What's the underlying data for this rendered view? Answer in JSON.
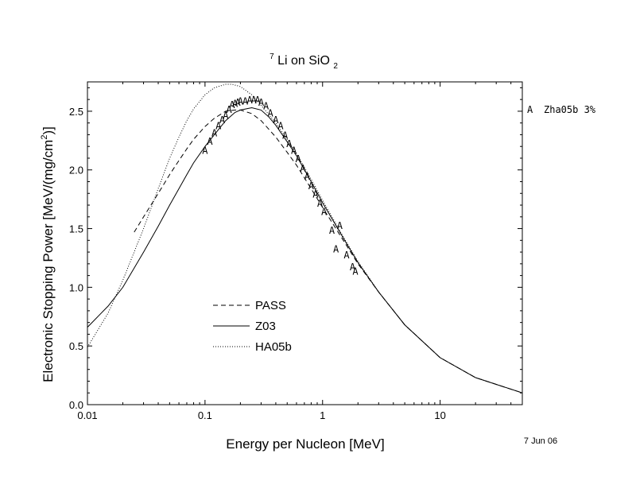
{
  "chart_data": {
    "type": "line",
    "title": {
      "isotope": "7",
      "text_before_sub": "Li on SiO",
      "subscript": "2"
    },
    "xlabel": "Energy per Nucleon [MeV]",
    "ylabel": {
      "prefix": "Electronic Stopping Power [MeV/(mg/cm",
      "superscript": "2",
      "suffix": ")]"
    },
    "x_scale": "log",
    "xlim": [
      0.01,
      50
    ],
    "ylim": [
      0.0,
      2.75
    ],
    "x_ticks": [
      {
        "value": 0.01,
        "label": "0.01"
      },
      {
        "value": 0.1,
        "label": "0.1"
      },
      {
        "value": 1,
        "label": "1"
      },
      {
        "value": 10,
        "label": "10"
      }
    ],
    "y_ticks": [
      {
        "value": 0.0,
        "label": "0.0"
      },
      {
        "value": 0.5,
        "label": "0.5"
      },
      {
        "value": 1.0,
        "label": "1.0"
      },
      {
        "value": 1.5,
        "label": "1.5"
      },
      {
        "value": 2.0,
        "label": "2.0"
      },
      {
        "value": 2.5,
        "label": "2.5"
      }
    ],
    "grid": false,
    "legend_position": "lower-center",
    "series": [
      {
        "name": "PASS",
        "style": "dashed",
        "x": [
          0.025,
          0.03,
          0.04,
          0.05,
          0.06,
          0.07,
          0.08,
          0.1,
          0.12,
          0.15,
          0.18,
          0.2,
          0.25,
          0.3,
          0.4,
          0.5,
          0.6,
          0.8,
          1.0,
          1.5,
          2.0,
          3.0,
          5.0,
          10,
          20,
          50
        ],
        "y": [
          1.47,
          1.6,
          1.8,
          1.96,
          2.08,
          2.18,
          2.26,
          2.37,
          2.44,
          2.5,
          2.51,
          2.51,
          2.48,
          2.42,
          2.28,
          2.15,
          2.04,
          1.84,
          1.68,
          1.4,
          1.2,
          0.96,
          0.68,
          0.4,
          0.23,
          0.1
        ]
      },
      {
        "name": "Z03",
        "style": "solid",
        "x": [
          0.01,
          0.015,
          0.02,
          0.03,
          0.04,
          0.05,
          0.06,
          0.07,
          0.08,
          0.1,
          0.12,
          0.15,
          0.18,
          0.2,
          0.25,
          0.3,
          0.35,
          0.4,
          0.5,
          0.6,
          0.8,
          1.0,
          1.5,
          2.0,
          3.0,
          5.0,
          10,
          20,
          50
        ],
        "y": [
          0.66,
          0.84,
          1.0,
          1.3,
          1.52,
          1.7,
          1.84,
          1.96,
          2.06,
          2.2,
          2.3,
          2.42,
          2.49,
          2.51,
          2.53,
          2.51,
          2.45,
          2.38,
          2.24,
          2.12,
          1.9,
          1.72,
          1.42,
          1.21,
          0.96,
          0.68,
          0.4,
          0.23,
          0.1
        ]
      },
      {
        "name": "HA05b",
        "style": "dotted",
        "x": [
          0.01,
          0.015,
          0.02,
          0.03,
          0.04,
          0.05,
          0.06,
          0.07,
          0.08,
          0.1,
          0.12,
          0.15,
          0.17,
          0.2,
          0.25,
          0.3,
          0.35,
          0.4,
          0.5,
          0.6,
          0.8,
          1.0,
          1.5,
          2.0,
          3.0,
          5.0,
          10,
          20,
          50
        ],
        "y": [
          0.49,
          0.78,
          1.06,
          1.5,
          1.84,
          2.1,
          2.28,
          2.42,
          2.52,
          2.64,
          2.7,
          2.73,
          2.73,
          2.71,
          2.64,
          2.55,
          2.47,
          2.4,
          2.26,
          2.14,
          1.92,
          1.74,
          1.43,
          1.22,
          0.96,
          0.68,
          0.4,
          0.23,
          0.1
        ]
      }
    ],
    "experimental": {
      "marker": "A",
      "legend_label": "Zha05b 3%",
      "legend_position": "right",
      "x": [
        0.1,
        0.11,
        0.12,
        0.13,
        0.14,
        0.15,
        0.16,
        0.17,
        0.18,
        0.19,
        0.2,
        0.22,
        0.24,
        0.26,
        0.28,
        0.3,
        0.33,
        0.36,
        0.4,
        0.44,
        0.48,
        0.52,
        0.57,
        0.62,
        0.68,
        0.74,
        0.8,
        0.87,
        0.95,
        1.03,
        1.2,
        1.3,
        1.4,
        1.6,
        1.8,
        1.9
      ],
      "y": [
        2.17,
        2.25,
        2.32,
        2.38,
        2.43,
        2.47,
        2.52,
        2.56,
        2.57,
        2.58,
        2.59,
        2.59,
        2.6,
        2.6,
        2.6,
        2.58,
        2.55,
        2.49,
        2.43,
        2.38,
        2.3,
        2.23,
        2.17,
        2.1,
        2.02,
        1.95,
        1.87,
        1.8,
        1.72,
        1.65,
        1.49,
        1.33,
        1.53,
        1.28,
        1.18,
        1.14
      ]
    },
    "date_note": "7 Jun 06"
  }
}
